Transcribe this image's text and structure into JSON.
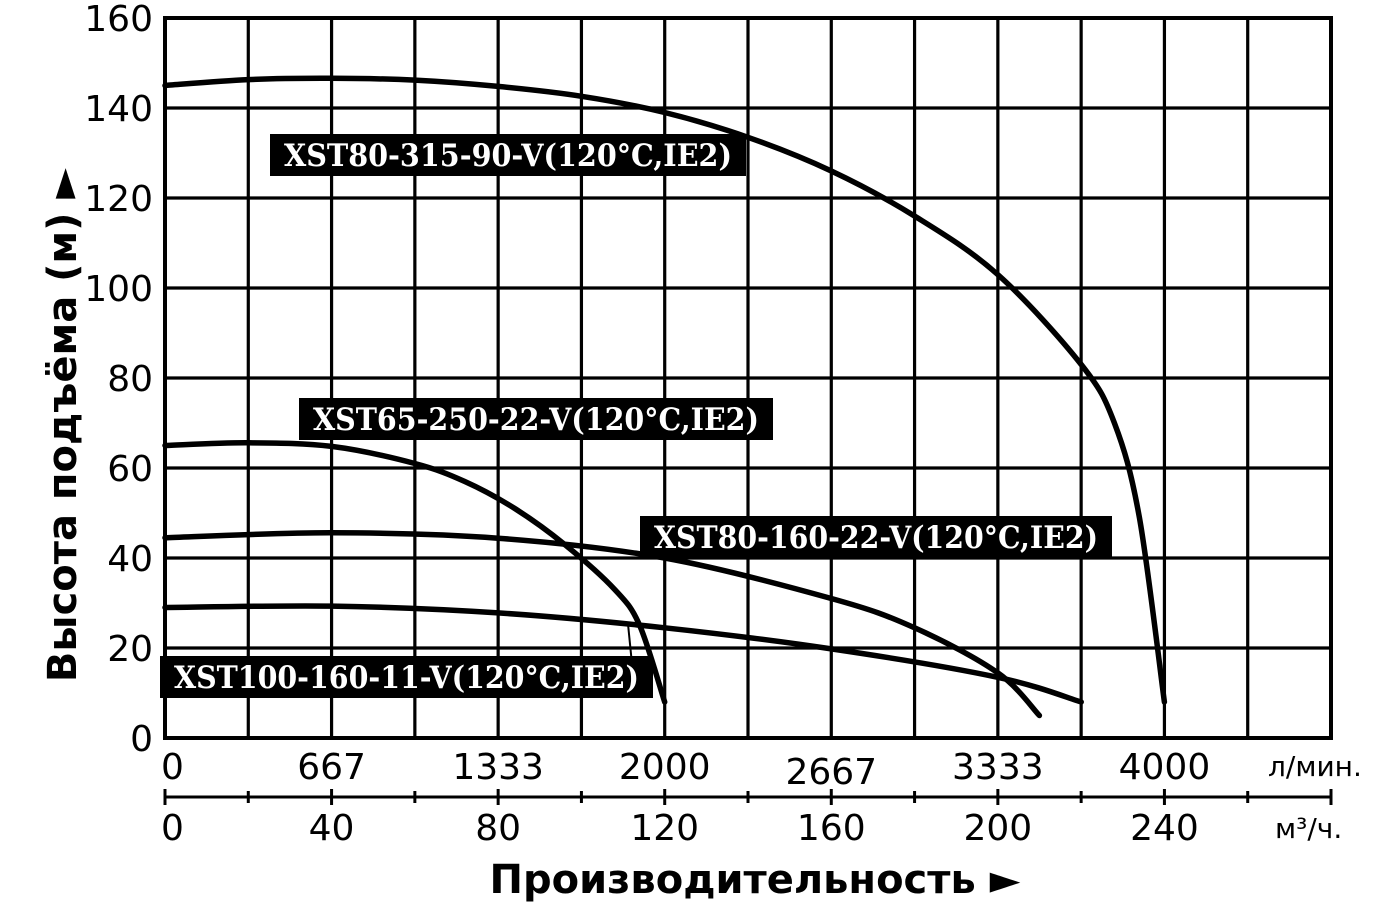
{
  "chart_data": {
    "type": "line",
    "xlabel": "Производительность ►",
    "ylabel": "Высота подъёма (м) ►",
    "x_unit": "л/мин.",
    "x2_unit": "м³/ч.",
    "xlim": [
      0,
      4667
    ],
    "ylim": [
      0,
      160
    ],
    "grid": true,
    "legend": "inline",
    "y_ticks": [
      "0",
      "20",
      "40",
      "60",
      "80",
      "100",
      "120",
      "140",
      "160"
    ],
    "x_ticks": [
      "0",
      "667",
      "1333",
      "2000",
      "2667",
      "3333",
      "4000"
    ],
    "x2_ticks": [
      "0",
      "40",
      "80",
      "120",
      "160",
      "200",
      "240"
    ],
    "series": [
      {
        "name": "XST80-315-90-V(120°C,IE2)",
        "x": [
          0,
          333,
          667,
          1000,
          1333,
          1667,
          2000,
          2333,
          2667,
          3000,
          3333,
          3667,
          3800,
          3900,
          4000
        ],
        "y": [
          145,
          146.3,
          146.6,
          146.2,
          144.8,
          142.6,
          139,
          133.5,
          126,
          116,
          103,
          83,
          70,
          49,
          8
        ]
      },
      {
        "name": "XST65-250-22-V(120°C,IE2)",
        "x": [
          0,
          333,
          667,
          1000,
          1200,
          1400,
          1600,
          1800,
          1900,
          2000
        ],
        "y": [
          65,
          65.6,
          64.8,
          61,
          57,
          51,
          43,
          33,
          25,
          8
        ]
      },
      {
        "name": "XST80-160-22-V(120°C,IE2)",
        "x": [
          0,
          667,
          1333,
          2000,
          2667,
          3000,
          3333,
          3500
        ],
        "y": [
          44.5,
          45.6,
          44.4,
          40,
          31,
          24.5,
          14.5,
          5
        ]
      },
      {
        "name": "XST100-160-11-V(120°C,IE2)",
        "x": [
          0,
          667,
          1333,
          2000,
          2667,
          3333,
          3667
        ],
        "y": [
          29,
          29.3,
          27.8,
          24.5,
          19.8,
          13.5,
          8
        ]
      }
    ],
    "labels": {
      "XST80-315-90-V(120°C,IE2)": "XST80-315-90-V(120°C,IE2)",
      "XST65-250-22-V(120°C,IE2)": "XST65-250-22-V(120°C,IE2)",
      "XST80-160-22-V(120°C,IE2)": "XST80-160-22-V(120°C,IE2)",
      "XST100-160-11-V(120°C,IE2)": "XST100-160-11-V(120°C,IE2)"
    }
  }
}
